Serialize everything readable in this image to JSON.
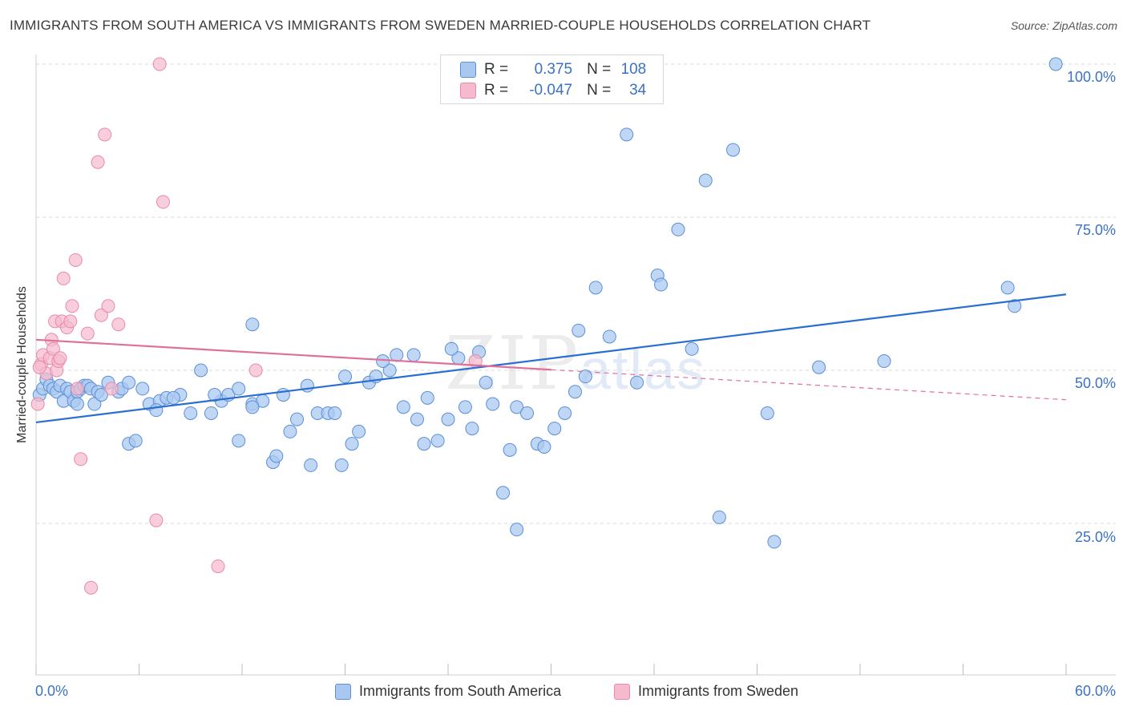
{
  "title": "IMMIGRANTS FROM SOUTH AMERICA VS IMMIGRANTS FROM SWEDEN MARRIED-COUPLE HOUSEHOLDS CORRELATION CHART",
  "source": "Source: ZipAtlas.com",
  "watermark": {
    "zip": "ZIP",
    "atlas": "atlas"
  },
  "legend_top": {
    "rows": [
      {
        "r_label": "R =",
        "r_value": "0.375",
        "n_label": "N =",
        "n_value": "108"
      },
      {
        "r_label": "R =",
        "r_value": "-0.047",
        "n_label": "N =",
        "n_value": "34"
      }
    ]
  },
  "colors": {
    "blue_fill": "#a9c8f0",
    "blue_stroke": "#5b8fd6",
    "blue_line": "#2a6fd0",
    "pink_fill": "#f6b9cd",
    "pink_stroke": "#e88aaa",
    "pink_line": "#e0709a",
    "tick_text": "#3a72c4",
    "grid": "#d9d9d9"
  },
  "chart_data": {
    "type": "scatter",
    "title": "IMMIGRANTS FROM SOUTH AMERICA VS IMMIGRANTS FROM SWEDEN MARRIED-COUPLE HOUSEHOLDS CORRELATION CHART",
    "xlabel": "",
    "ylabel": "Married-couple Households",
    "xlim": [
      0,
      60
    ],
    "ylim": [
      0,
      103
    ],
    "x_tick_labels": [
      "0.0%",
      "60.0%"
    ],
    "y_ticks": [
      25,
      50,
      75,
      100
    ],
    "y_tick_labels": [
      "25.0%",
      "50.0%",
      "75.0%",
      "100.0%"
    ],
    "grid": true,
    "legend_position": "top-center",
    "series": [
      {
        "name": "Immigrants from South America",
        "color": "#a9c8f0",
        "R": 0.375,
        "N": 108,
        "trend": {
          "x": [
            0,
            60
          ],
          "y": [
            41.5,
            62.4
          ]
        },
        "points": [
          [
            0.2,
            46
          ],
          [
            0.4,
            47
          ],
          [
            0.6,
            48.5
          ],
          [
            0.8,
            47.5
          ],
          [
            1.0,
            47
          ],
          [
            1.2,
            46.5
          ],
          [
            1.4,
            47.5
          ],
          [
            1.6,
            45
          ],
          [
            1.8,
            47
          ],
          [
            2.0,
            46.5
          ],
          [
            2.2,
            45
          ],
          [
            2.4,
            46.5
          ],
          [
            2.6,
            47
          ],
          [
            2.8,
            47.5
          ],
          [
            3.0,
            47.5
          ],
          [
            3.2,
            47
          ],
          [
            3.4,
            44.5
          ],
          [
            3.6,
            46.5
          ],
          [
            3.8,
            46
          ],
          [
            4.2,
            48
          ],
          [
            4.8,
            46.5
          ],
          [
            5.0,
            47
          ],
          [
            5.4,
            38
          ],
          [
            5.8,
            38.5
          ],
          [
            6.2,
            47
          ],
          [
            6.6,
            44.5
          ],
          [
            7.2,
            45
          ],
          [
            7.6,
            45.5
          ],
          [
            8.4,
            46
          ],
          [
            9.0,
            43
          ],
          [
            9.6,
            50
          ],
          [
            10.2,
            43
          ],
          [
            10.8,
            45
          ],
          [
            11.2,
            46
          ],
          [
            11.8,
            47
          ],
          [
            12.6,
            44.5
          ],
          [
            13.2,
            45
          ],
          [
            13.8,
            35
          ],
          [
            14.4,
            46
          ],
          [
            14.8,
            40
          ],
          [
            15.2,
            42
          ],
          [
            16.0,
            34.5
          ],
          [
            16.4,
            43
          ],
          [
            17.0,
            43
          ],
          [
            17.4,
            43
          ],
          [
            17.8,
            34.5
          ],
          [
            18.4,
            38
          ],
          [
            18.8,
            40
          ],
          [
            19.4,
            48
          ],
          [
            19.8,
            49
          ],
          [
            20.6,
            50
          ],
          [
            21.0,
            52.5
          ],
          [
            21.4,
            44
          ],
          [
            22.2,
            42
          ],
          [
            22.6,
            38
          ],
          [
            23.4,
            38.5
          ],
          [
            24.0,
            42
          ],
          [
            24.6,
            52
          ],
          [
            25.0,
            44
          ],
          [
            25.4,
            40.5
          ],
          [
            26.2,
            48
          ],
          [
            26.6,
            44.5
          ],
          [
            27.2,
            30
          ],
          [
            27.6,
            37
          ],
          [
            28.0,
            44
          ],
          [
            28.6,
            43
          ],
          [
            29.2,
            38
          ],
          [
            29.6,
            37.5
          ],
          [
            30.2,
            40.5
          ],
          [
            30.8,
            43
          ],
          [
            31.4,
            46.5
          ],
          [
            32.0,
            49
          ],
          [
            32.6,
            63.5
          ],
          [
            33.4,
            55.5
          ],
          [
            34.4,
            88.5
          ],
          [
            35.0,
            48
          ],
          [
            36.2,
            65.5
          ],
          [
            36.4,
            64
          ],
          [
            37.4,
            73
          ],
          [
            38.2,
            53.5
          ],
          [
            39.0,
            81
          ],
          [
            39.8,
            26
          ],
          [
            40.6,
            86
          ],
          [
            42.6,
            43
          ],
          [
            43.0,
            22
          ],
          [
            45.6,
            50.5
          ],
          [
            49.4,
            51.5
          ],
          [
            56.6,
            63.5
          ],
          [
            57.0,
            60.5
          ],
          [
            59.4,
            100
          ],
          [
            5.4,
            48
          ],
          [
            8.0,
            45.5
          ],
          [
            11.8,
            38.5
          ],
          [
            18.0,
            49
          ],
          [
            22.8,
            45.5
          ],
          [
            28.0,
            24
          ],
          [
            2.4,
            44.5
          ],
          [
            7.0,
            43.5
          ],
          [
            10.4,
            46
          ],
          [
            14.0,
            36
          ],
          [
            22.0,
            52.5
          ],
          [
            24.2,
            53.5
          ],
          [
            25.8,
            53
          ],
          [
            31.6,
            56.5
          ],
          [
            12.6,
            44
          ],
          [
            15.8,
            47.5
          ],
          [
            20.2,
            51.5
          ],
          [
            12.6,
            57.5
          ]
        ]
      },
      {
        "name": "Immigrants from Sweden",
        "color": "#f6b9cd",
        "R": -0.047,
        "N": 34,
        "trend": {
          "x": [
            0,
            60
          ],
          "y": [
            55,
            45.2
          ]
        },
        "points": [
          [
            0.1,
            44.5
          ],
          [
            0.3,
            51
          ],
          [
            0.4,
            52.5
          ],
          [
            0.6,
            49.5
          ],
          [
            0.8,
            52
          ],
          [
            0.9,
            55
          ],
          [
            1.0,
            53.5
          ],
          [
            1.1,
            58
          ],
          [
            1.2,
            50
          ],
          [
            1.3,
            51.5
          ],
          [
            1.4,
            52
          ],
          [
            1.5,
            58
          ],
          [
            1.6,
            65
          ],
          [
            1.8,
            57
          ],
          [
            2.0,
            58
          ],
          [
            2.1,
            60.5
          ],
          [
            2.3,
            68
          ],
          [
            2.4,
            47
          ],
          [
            2.6,
            35.5
          ],
          [
            3.0,
            56
          ],
          [
            3.6,
            84
          ],
          [
            3.8,
            59
          ],
          [
            4.0,
            88.5
          ],
          [
            4.2,
            60.5
          ],
          [
            4.4,
            47
          ],
          [
            4.8,
            57.5
          ],
          [
            7.0,
            25.5
          ],
          [
            7.2,
            100
          ],
          [
            7.4,
            77.5
          ],
          [
            10.6,
            18
          ],
          [
            12.8,
            50
          ],
          [
            25.6,
            51.5
          ],
          [
            3.2,
            14.5
          ],
          [
            0.2,
            50.5
          ]
        ]
      }
    ]
  },
  "y_axis_label": "Married-couple Households",
  "x_axis": {
    "left_label": "0.0%",
    "right_label": "60.0%"
  },
  "y_axis": {
    "labels": [
      "100.0%",
      "75.0%",
      "50.0%",
      "25.0%"
    ]
  },
  "bottom_legend": [
    {
      "label": "Immigrants from South America"
    },
    {
      "label": "Immigrants from Sweden"
    }
  ]
}
